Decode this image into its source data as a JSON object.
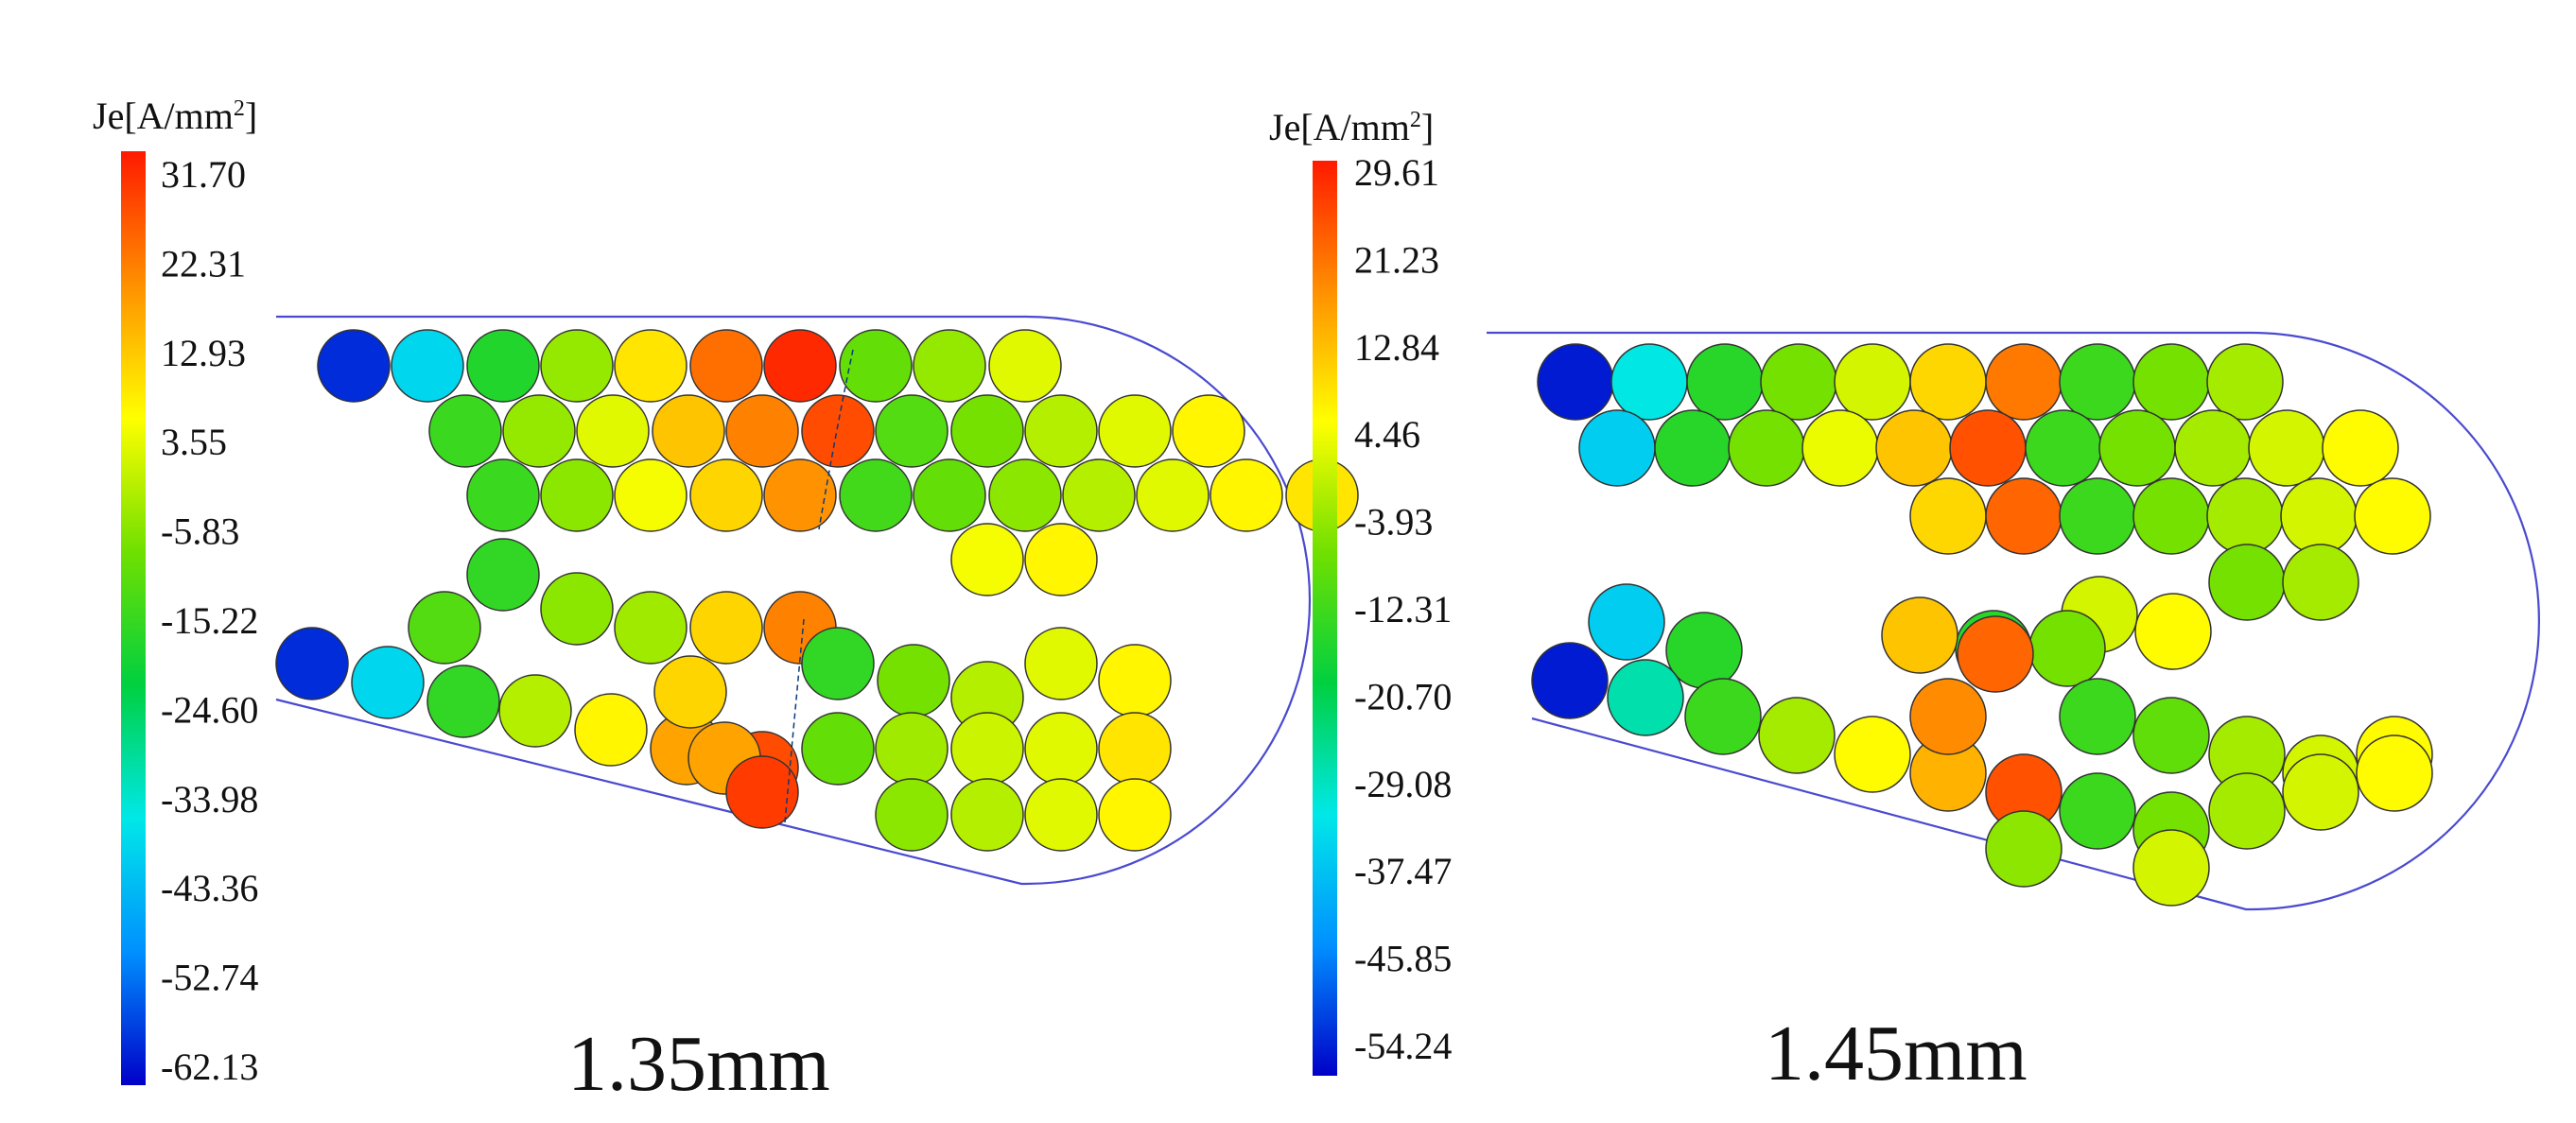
{
  "colors": {
    "scale": [
      "#0000c8",
      "#0090ff",
      "#00e8e8",
      "#00d040",
      "#70e000",
      "#ffff00",
      "#ff9000",
      "#ff1a00"
    ],
    "outline": "#4a4ad0",
    "wire_edge": "#333333"
  },
  "panels": [
    {
      "id": "left",
      "colorbar": {
        "title": "Je[A/mm",
        "title_sup": "2",
        "title_end": "]",
        "ticks": [
          "31.70",
          "22.31",
          "12.93",
          "3.55",
          "-5.83",
          "-15.22",
          "-24.60",
          "-33.98",
          "-43.36",
          "-52.74",
          "-62.13"
        ],
        "min": -62.13,
        "max": 31.7
      },
      "caption": "1.35mm",
      "wire_values": [
        -58,
        -38,
        -18,
        -5,
        8,
        22,
        30,
        -10,
        -5,
        2,
        -15,
        -5,
        2,
        12,
        20,
        26,
        -12,
        -8,
        -2,
        2,
        6,
        -15,
        -6,
        4,
        10,
        18,
        -14,
        -10,
        -6,
        -2,
        2,
        6,
        8,
        4,
        6,
        -16,
        -6,
        -12,
        -4,
        10,
        20,
        -58,
        -38,
        -16,
        -2,
        6,
        16,
        26,
        -16,
        -8,
        -2,
        2,
        6,
        10,
        16,
        28,
        -10,
        -4,
        0,
        2,
        8,
        -6,
        -2,
        2,
        6
      ]
    },
    {
      "id": "right",
      "colorbar": {
        "title": "Je[A/mm",
        "title_sup": "2",
        "title_end": "]",
        "ticks": [
          "29.61",
          "21.23",
          "12.84",
          "4.46",
          "-3.93",
          "-12.31",
          "-20.70",
          "-29.08",
          "-37.47",
          "-45.85",
          "-54.24"
        ],
        "min": -54.24,
        "max": 29.61
      },
      "caption": "1.45mm",
      "wire_values": [
        -52,
        -30,
        -14,
        -6,
        2,
        10,
        20,
        -12,
        -6,
        -2,
        -34,
        -14,
        -6,
        4,
        12,
        24,
        -12,
        -6,
        -2,
        2,
        6,
        10,
        22,
        -12,
        -6,
        -2,
        2,
        6,
        -6,
        -2,
        2,
        6,
        -14,
        -6,
        -34,
        -14,
        12,
        22,
        -52,
        -26,
        -12,
        -2,
        6,
        14,
        24,
        -12,
        -8,
        -2,
        2,
        6,
        18,
        -12,
        -6,
        -2,
        2,
        6,
        -4,
        2
      ]
    }
  ]
}
